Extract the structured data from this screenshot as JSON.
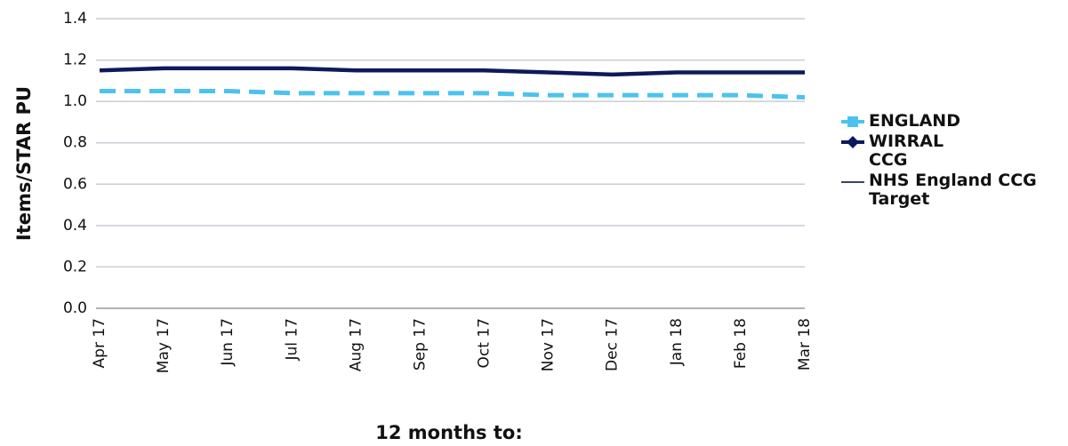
{
  "chart_data": {
    "type": "line",
    "y_label": "Items/STAR PU",
    "x_label": "12 months to:",
    "categories": [
      "Apr 17",
      "May 17",
      "Jun 17",
      "Jul 17",
      "Aug 17",
      "Sep 17",
      "Oct 17",
      "Nov 17",
      "Dec 17",
      "Jan 18",
      "Feb 18",
      "Mar 18"
    ],
    "series": [
      {
        "name": "ENGLAND",
        "color": "#4cc2ef",
        "dashed": true,
        "values": [
          1.05,
          1.05,
          1.05,
          1.04,
          1.04,
          1.04,
          1.04,
          1.03,
          1.03,
          1.03,
          1.03,
          1.02
        ]
      },
      {
        "name": "WIRRAL CCG",
        "color": "#0c1a5c",
        "dashed": false,
        "values": [
          1.15,
          1.16,
          1.16,
          1.16,
          1.15,
          1.15,
          1.15,
          1.14,
          1.13,
          1.14,
          1.14,
          1.14
        ]
      },
      {
        "name": "NHS England CCG Target",
        "color": "#3a4560",
        "dashed": false,
        "values": [
          null,
          null,
          null,
          null,
          null,
          null,
          null,
          null,
          null,
          null,
          null,
          null
        ]
      }
    ],
    "ylim": [
      0,
      1.4
    ],
    "yticks": [
      {
        "value": 0,
        "label": "0.0"
      },
      0.2,
      0.4,
      0.6,
      0.8,
      {
        "value": 1,
        "label": "1.0"
      },
      1.2,
      1.4
    ],
    "grid": true,
    "legend": "right"
  }
}
